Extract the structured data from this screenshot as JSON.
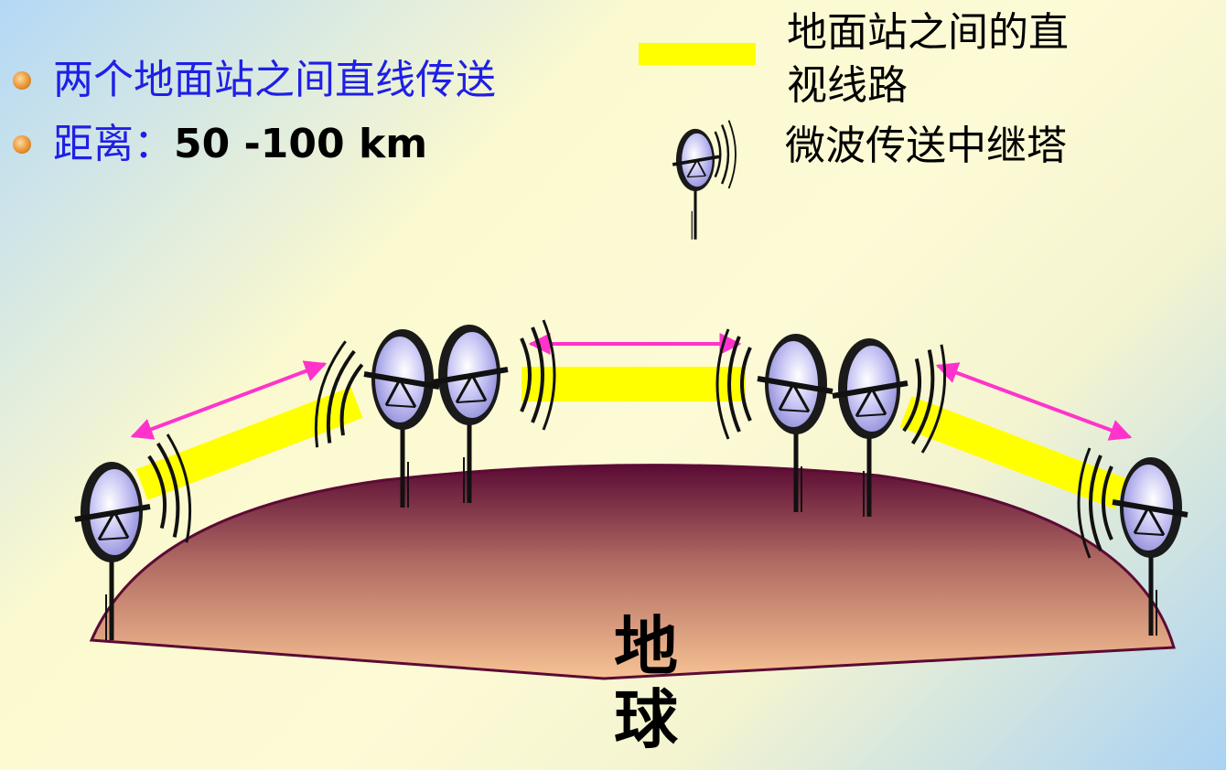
{
  "bullets": [
    {
      "label": "两个地面站之间直线传送",
      "value": ""
    },
    {
      "label": "距离：",
      "value": "50 -100 km"
    }
  ],
  "legend": {
    "line_of_sight": "地面站之间的直视线路",
    "line_of_sight_lines": [
      "地面站之间的直",
      "视线路"
    ],
    "tower": "微波传送中继塔"
  },
  "earth": {
    "label": "地球",
    "chars": [
      "地",
      "球"
    ]
  },
  "colors": {
    "bullet_text": "#1f1fe6",
    "path": "#ffff00",
    "arrow": "#ff33cc",
    "earth_top": "#5b0b34",
    "earth_bottom": "#f7c294"
  },
  "icons": [
    "bullet-dot-icon",
    "microwave-dish-icon",
    "double-arrow-icon"
  ]
}
